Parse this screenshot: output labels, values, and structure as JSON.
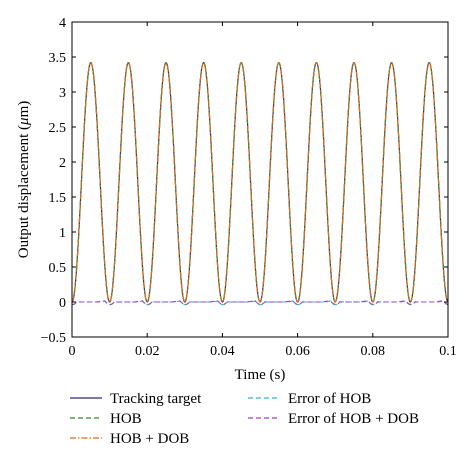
{
  "chart_data": {
    "type": "line",
    "title": "",
    "xlabel": "Time (s)",
    "ylabel": "Output displacement (",
    "ylabel_mu": "μ",
    "ylabel_unit": "m)",
    "xlim": [
      0,
      0.1
    ],
    "ylim": [
      -0.5,
      4
    ],
    "x_ticks": [
      "0",
      "0.02",
      "0.04",
      "0.06",
      "0.08",
      "0.1"
    ],
    "y_ticks": [
      "−0.5",
      "0",
      "0.5",
      "1",
      "1.5",
      "2",
      "2.5",
      "3",
      "3.5",
      "4"
    ],
    "grid": false,
    "legend_position": "bottom",
    "signal": {
      "amplitude": 3.42,
      "frequency_hz": 100,
      "description": "raised cosine y = A/2 (1 − cos(2π f t)), peaks at 3.42"
    },
    "series": [
      {
        "name": "Tracking target",
        "color": "#2b2b6e",
        "dash": "solid",
        "kind": "signal"
      },
      {
        "name": "HOB",
        "color": "#2e8b2e",
        "dash": "dashed",
        "kind": "signal"
      },
      {
        "name": "HOB + DOB",
        "color": "#e06a1a",
        "dash": "dashdot",
        "kind": "signal"
      },
      {
        "name": "Error of HOB",
        "color": "#33b3c8",
        "dash": "dashed",
        "kind": "error",
        "range": [
          -0.06,
          0.03
        ]
      },
      {
        "name": "Error of HOB + DOB",
        "color": "#a040c0",
        "dash": "dashed",
        "kind": "error",
        "range": [
          -0.04,
          0.02
        ]
      }
    ]
  }
}
